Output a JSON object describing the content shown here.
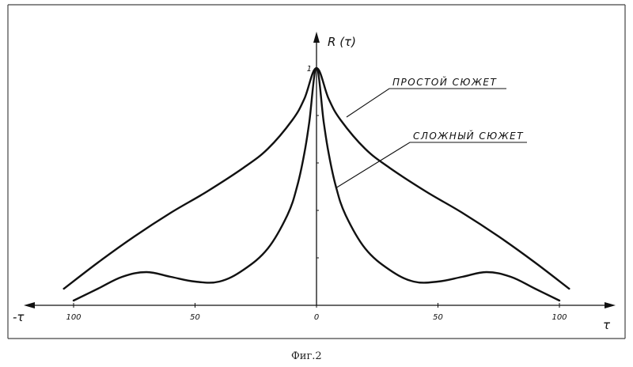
{
  "caption": "Фиг.2",
  "chart_data": {
    "type": "line",
    "title": "",
    "ylabel": "R (τ)",
    "xlabel_right": "τ",
    "xlabel_left": "-τ",
    "xlim": [
      -110,
      110
    ],
    "ylim": [
      0,
      1
    ],
    "grid": false,
    "x_tick_labels": [
      "100",
      "50",
      "0",
      "50",
      "100"
    ],
    "x_tick_values": [
      -100,
      -50,
      0,
      50,
      100
    ],
    "y_tick_labels": [
      "1"
    ],
    "y_tick_values": [
      1
    ],
    "series": [
      {
        "name": "ПРОСТОЙ  СЮЖЕТ",
        "x": [
          -104,
          -90,
          -75,
          -60,
          -45,
          -30,
          -20,
          -10,
          -5,
          0,
          5,
          10,
          20,
          30,
          45,
          60,
          75,
          90,
          104
        ],
        "y": [
          0.07,
          0.18,
          0.29,
          0.39,
          0.48,
          0.58,
          0.66,
          0.78,
          0.87,
          1.0,
          0.87,
          0.78,
          0.66,
          0.58,
          0.48,
          0.39,
          0.29,
          0.18,
          0.07
        ]
      },
      {
        "name": "СЛОЖНЫЙ  СЮЖЕТ",
        "x": [
          -100,
          -90,
          -80,
          -70,
          -60,
          -50,
          -40,
          -30,
          -20,
          -12,
          -8,
          -5,
          -3,
          0,
          3,
          5,
          8,
          12,
          20,
          30,
          40,
          50,
          60,
          70,
          80,
          90,
          100
        ],
        "y": [
          0.02,
          0.07,
          0.12,
          0.14,
          0.12,
          0.1,
          0.1,
          0.15,
          0.24,
          0.38,
          0.5,
          0.64,
          0.77,
          1.0,
          0.77,
          0.64,
          0.5,
          0.38,
          0.24,
          0.15,
          0.1,
          0.1,
          0.12,
          0.14,
          0.12,
          0.07,
          0.02
        ]
      }
    ]
  }
}
